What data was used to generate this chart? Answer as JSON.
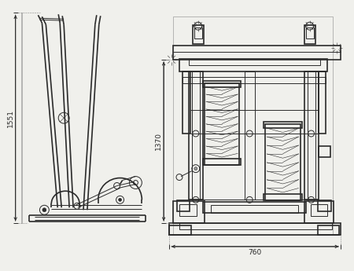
{
  "bg_color": "#f0f0ec",
  "line_color": "#2a2a2a",
  "dim_1551": "1551",
  "dim_1370": "1370",
  "dim_760": "760",
  "fig_width": 4.5,
  "fig_height": 3.45,
  "dpi": 100
}
